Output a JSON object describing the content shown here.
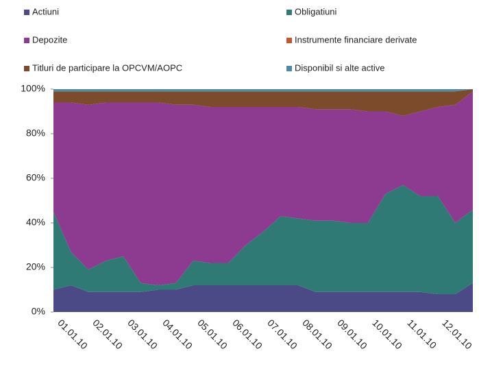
{
  "chart_data": {
    "type": "stacked_area",
    "categories": [
      "01.01.10",
      null,
      "02.01.10",
      null,
      "03.01.10",
      null,
      "04.01.10",
      null,
      "05.01.10",
      null,
      "06.01.10",
      null,
      "07.01.10",
      null,
      "08.01.10",
      null,
      "09.01.10",
      null,
      "10.01.10",
      null,
      "11.01.10",
      null,
      "12.01.10",
      null,
      null
    ],
    "series": [
      {
        "name": "Actiuni",
        "color": "#4b4a86",
        "values": [
          10,
          12,
          9,
          9,
          9,
          9,
          10,
          10,
          12,
          12,
          12,
          12,
          12,
          12,
          12,
          9,
          9,
          9,
          9,
          9,
          9,
          9,
          8,
          8,
          13
        ]
      },
      {
        "name": "Obligatiuni",
        "color": "#2f7a74",
        "values": [
          35,
          15,
          10,
          14,
          16,
          4,
          2,
          3,
          11,
          10,
          10,
          18,
          24,
          31,
          30,
          32,
          32,
          31,
          31,
          44,
          48,
          43,
          44,
          32,
          33
        ]
      },
      {
        "name": "Depozite",
        "color": "#8c3b90",
        "values": [
          49,
          67,
          74,
          71,
          69,
          81,
          82,
          80,
          70,
          70,
          70,
          62,
          56,
          49,
          50,
          50,
          50,
          51,
          50,
          37,
          31,
          38,
          40,
          53,
          53
        ]
      },
      {
        "name": "Instrumente financiare derivate",
        "color": "#c4582b",
        "values": [
          0,
          0,
          0,
          0,
          0,
          0,
          0,
          0,
          0,
          0,
          0,
          0,
          0,
          0,
          0,
          0,
          0,
          0,
          0,
          0,
          0,
          0,
          0,
          0,
          0
        ]
      },
      {
        "name": "Titluri de participare la OPCVM/AOPC",
        "color": "#7b4b2c",
        "values": [
          5,
          5,
          6,
          5,
          5,
          5,
          5,
          6,
          6,
          7,
          7,
          7,
          7,
          7,
          7,
          8,
          8,
          8,
          9,
          9,
          11,
          9,
          7,
          6,
          1
        ]
      },
      {
        "name": "Disponibil si alte active",
        "color": "#4d8ba3",
        "values": [
          1,
          1,
          1,
          1,
          1,
          1,
          1,
          1,
          1,
          1,
          1,
          1,
          1,
          1,
          1,
          1,
          1,
          1,
          1,
          1,
          1,
          1,
          1,
          1,
          0
        ]
      }
    ],
    "ylim": [
      0,
      100
    ],
    "yticks": [
      {
        "value": 0,
        "label": "0%"
      },
      {
        "value": 20,
        "label": "20%"
      },
      {
        "value": 40,
        "label": "40%"
      },
      {
        "value": 60,
        "label": "60%"
      },
      {
        "value": 80,
        "label": "80%"
      },
      {
        "value": 100,
        "label": "100%"
      }
    ],
    "legend": "top"
  }
}
